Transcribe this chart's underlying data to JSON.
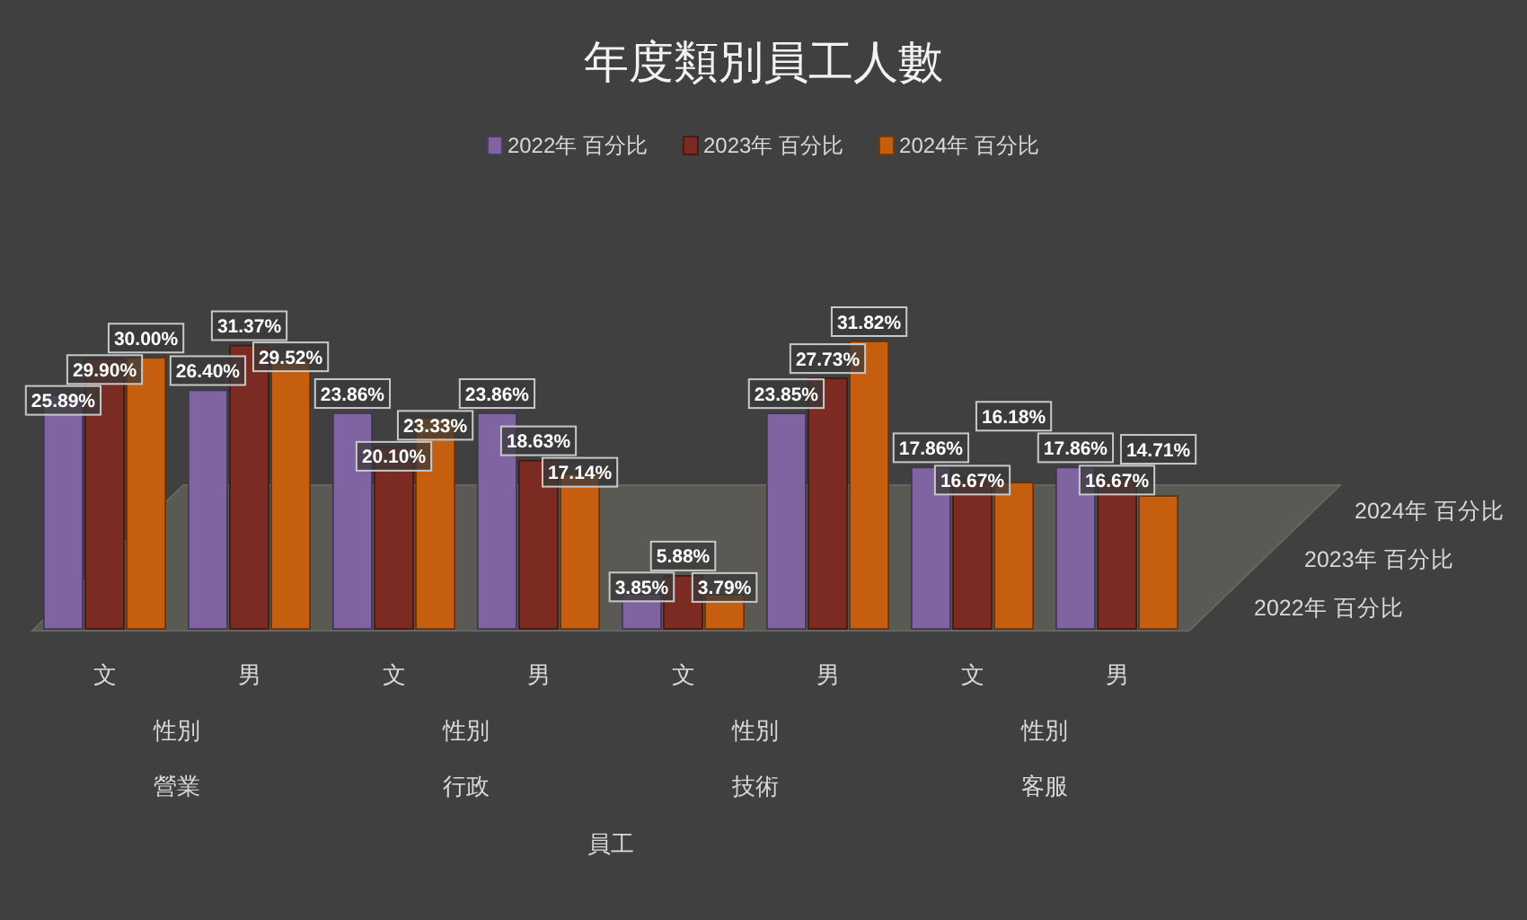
{
  "chart_data": {
    "type": "bar",
    "title": "年度類別員工人數",
    "categories": [
      "文",
      "男",
      "文",
      "男",
      "文",
      "男",
      "文",
      "男"
    ],
    "annotations": [
      "性別",
      "營業",
      "性別",
      "行政",
      "性別",
      "技術",
      "性別",
      "客服",
      "員工"
    ],
    "series": [
      {
        "name": "2022年 百分比",
        "color": "#8064a2",
        "values": [
          25.89,
          26.4,
          23.86,
          23.86,
          3.85,
          23.85,
          17.86,
          17.86
        ],
        "value_labels": [
          "25.89%",
          "26.40%",
          "23.86%",
          "23.86%",
          "3.85%",
          "23.85%",
          "17.86%",
          "17.86%"
        ]
      },
      {
        "name": "2023年 百分比",
        "color": "#7c2b23",
        "values": [
          29.9,
          31.37,
          20.1,
          18.63,
          5.88,
          27.73,
          16.67,
          16.67
        ],
        "value_labels": [
          "29.90%",
          "31.37%",
          "20.10%",
          "18.63%",
          "5.88%",
          "27.73%",
          "16.67%",
          "16.67%"
        ]
      },
      {
        "name": "2024年 百分比",
        "color": "#c55f0f",
        "values": [
          30.0,
          29.52,
          23.33,
          17.14,
          3.79,
          31.82,
          16.18,
          14.71
        ],
        "value_labels": [
          "30.00%",
          "29.52%",
          "23.33%",
          "17.14%",
          "3.79%",
          "31.82%",
          "16.18%",
          "14.71%"
        ]
      }
    ],
    "legend": "top"
  }
}
